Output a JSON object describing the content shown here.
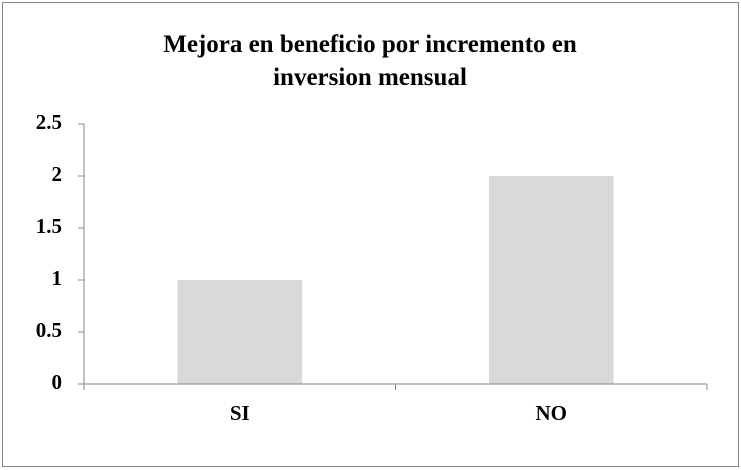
{
  "chart_data": {
    "type": "bar",
    "title": "Mejora en beneficio por incremento en inversion mensual",
    "categories": [
      "SI",
      "NO"
    ],
    "values": [
      1,
      2
    ],
    "color": "#d9d9d9",
    "ylim": [
      0,
      2.5
    ],
    "yticks": [
      0,
      0.5,
      1,
      1.5,
      2,
      2.5
    ],
    "grid": false
  }
}
